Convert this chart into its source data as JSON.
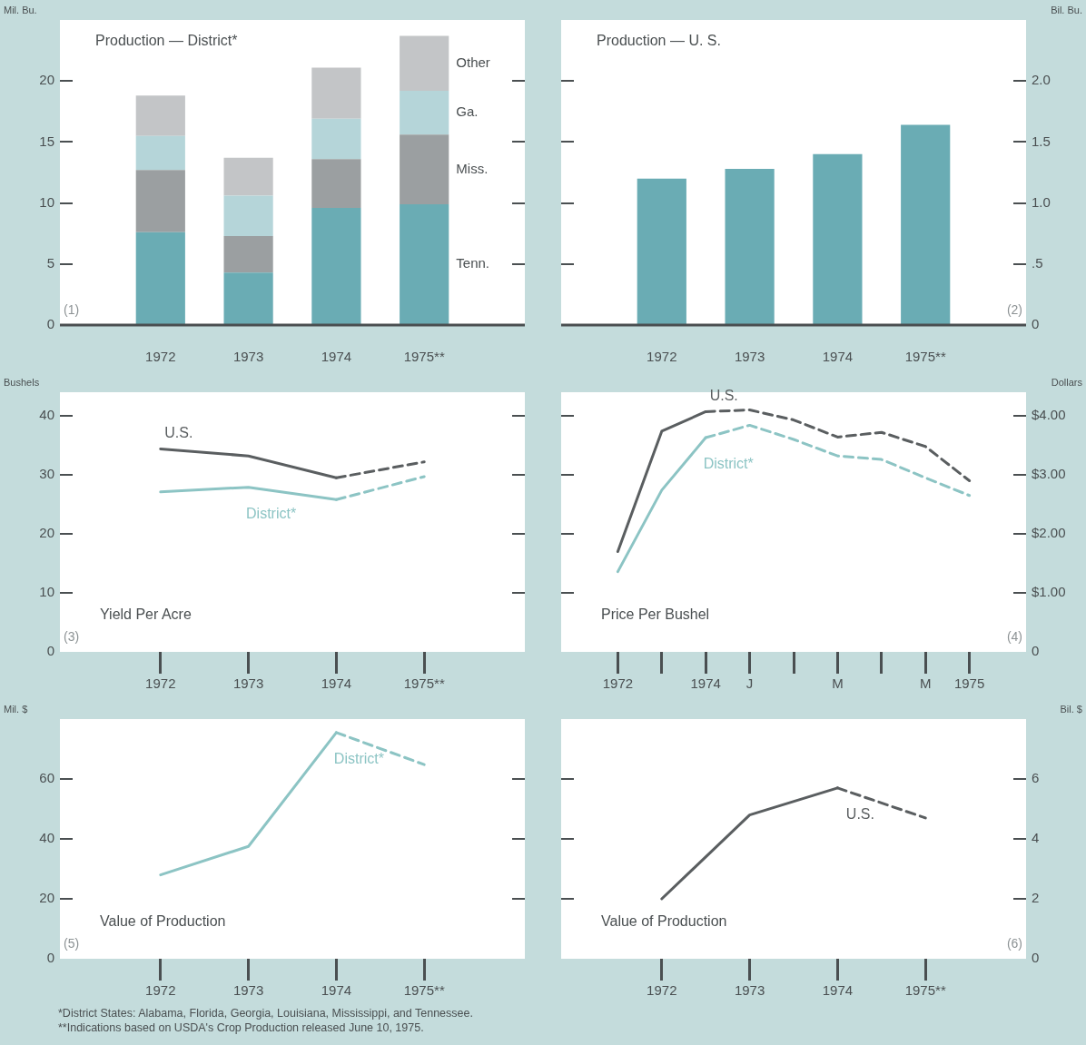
{
  "chart_data": [
    {
      "type": "bar",
      "title": "Production — District*",
      "ylabel": "Mil. Bu.",
      "categories": [
        "1972",
        "1973",
        "1974",
        "1975**"
      ],
      "stacked": true,
      "series": [
        {
          "name": "Tenn.",
          "color": "#6aacb4",
          "values": [
            7.6,
            4.3,
            9.6,
            9.9
          ]
        },
        {
          "name": "Miss.",
          "color": "#9b9fa1",
          "values": [
            5.1,
            3.0,
            4.0,
            5.7
          ]
        },
        {
          "name": "Ga.",
          "color": "#b5d5d9",
          "values": [
            2.8,
            3.3,
            3.3,
            3.6
          ]
        },
        {
          "name": "Other",
          "color": "#c3c5c7",
          "values": [
            3.3,
            3.1,
            4.2,
            4.5
          ]
        }
      ],
      "ylim": [
        0,
        25
      ],
      "yticks": [
        0,
        5,
        10,
        15,
        20
      ],
      "annotations": [
        "(1)"
      ]
    },
    {
      "type": "bar",
      "title": "Production — U. S.",
      "y2label": "Bil. Bu.",
      "categories": [
        "1972",
        "1973",
        "1974",
        "1975**"
      ],
      "series": [
        {
          "color": "#6aacb4",
          "values": [
            1.2,
            1.28,
            1.4,
            1.64
          ],
          "axis": "y2"
        }
      ],
      "y2lim": [
        0,
        2.5
      ],
      "y2ticks": [
        0,
        {
          "value": 0.5,
          "label": ".5"
        },
        {
          "value": 1,
          "label": "1.0"
        },
        1.5,
        {
          "value": 2,
          "label": "2.0"
        }
      ],
      "annotations": [
        "(2)"
      ]
    },
    {
      "type": "line",
      "title": "Yield Per Acre",
      "ylabel": "Bushels",
      "marker": "none",
      "categories": [
        "1972",
        "1973",
        "1974",
        "1975**"
      ],
      "series": [
        {
          "name": "U.S.",
          "color": "#5a5e60",
          "values": [
            34.4,
            33.2,
            29.5,
            null
          ]
        },
        {
          "color": "#5a5e60",
          "values": [
            null,
            null,
            29.5,
            32.2
          ],
          "line_style": "dashed"
        },
        {
          "name": "District*",
          "color": "#8cc4c4",
          "values": [
            27.1,
            27.9,
            25.8,
            null
          ]
        },
        {
          "color": "#8cc4c4",
          "values": [
            null,
            null,
            25.8,
            29.7
          ],
          "line_style": "dashed"
        }
      ],
      "ylim": [
        0,
        44
      ],
      "yticks": [
        0,
        10,
        20,
        30,
        40
      ],
      "annotations": [
        "(3)"
      ]
    },
    {
      "type": "line",
      "title": "Price Per Bushel",
      "y2label": "Dollars",
      "marker": "none",
      "categories": [
        "1972",
        null,
        "1974",
        "J",
        null,
        "M",
        null,
        "M",
        "1975"
      ],
      "series": [
        {
          "name": "U.S.",
          "color": "#5a5e60",
          "values": [
            1.7,
            3.74,
            4.07,
            null,
            null,
            null,
            null,
            null,
            null
          ],
          "axis": "y2"
        },
        {
          "color": "#5a5e60",
          "values": [
            null,
            null,
            4.07,
            4.1,
            3.93,
            3.64,
            3.72,
            3.48,
            2.9
          ],
          "axis": "y2",
          "line_style": "dashed"
        },
        {
          "name": "District*",
          "color": "#8cc4c4",
          "values": [
            1.36,
            2.74,
            3.63,
            null,
            null,
            null,
            null,
            null,
            null
          ],
          "axis": "y2"
        },
        {
          "color": "#8cc4c4",
          "values": [
            null,
            null,
            3.63,
            3.84,
            3.6,
            3.32,
            3.26,
            2.95,
            2.65
          ],
          "axis": "y2",
          "line_style": "dashed"
        }
      ],
      "y2lim": [
        0,
        4.4
      ],
      "y2ticks": [
        0,
        {
          "value": 1,
          "label": "$1.00"
        },
        {
          "value": 2,
          "label": "$2.00"
        },
        {
          "value": 3,
          "label": "$3.00"
        },
        {
          "value": 4,
          "label": "$4.00"
        }
      ],
      "annotations": [
        "(4)"
      ]
    },
    {
      "type": "line",
      "title": "Value of Production",
      "ylabel": "Mil. $",
      "marker": "none",
      "categories": [
        "1972",
        "1973",
        "1974",
        "1975**"
      ],
      "series": [
        {
          "name": "District*",
          "color": "#8cc4c4",
          "values": [
            28,
            37.5,
            75.5,
            null
          ]
        },
        {
          "color": "#8cc4c4",
          "values": [
            null,
            null,
            75.5,
            64.8
          ],
          "line_style": "dashed"
        }
      ],
      "ylim": [
        0,
        80
      ],
      "yticks": [
        0,
        20,
        40,
        60
      ],
      "annotations": [
        "(5)"
      ]
    },
    {
      "type": "line",
      "title": "Value of Production",
      "y2label": "Bil. $",
      "marker": "none",
      "categories": [
        "1972",
        "1973",
        "1974",
        "1975**"
      ],
      "series": [
        {
          "name": "U.S.",
          "color": "#5a5e60",
          "values": [
            2.0,
            4.8,
            5.7,
            null
          ],
          "axis": "y2"
        },
        {
          "color": "#5a5e60",
          "values": [
            null,
            null,
            5.7,
            4.7
          ],
          "axis": "y2",
          "line_style": "dashed"
        }
      ],
      "y2lim": [
        0,
        8
      ],
      "y2ticks": [
        0,
        2,
        4,
        6
      ],
      "annotations": [
        "(6)"
      ]
    },
    {
      "type": "other",
      "annotations": [
        "*District States: Alabama, Florida, Georgia, Louisiana, Mississippi, and Tennessee.",
        "**Indications based on USDA's Crop Production released June 10, 1975."
      ]
    }
  ]
}
